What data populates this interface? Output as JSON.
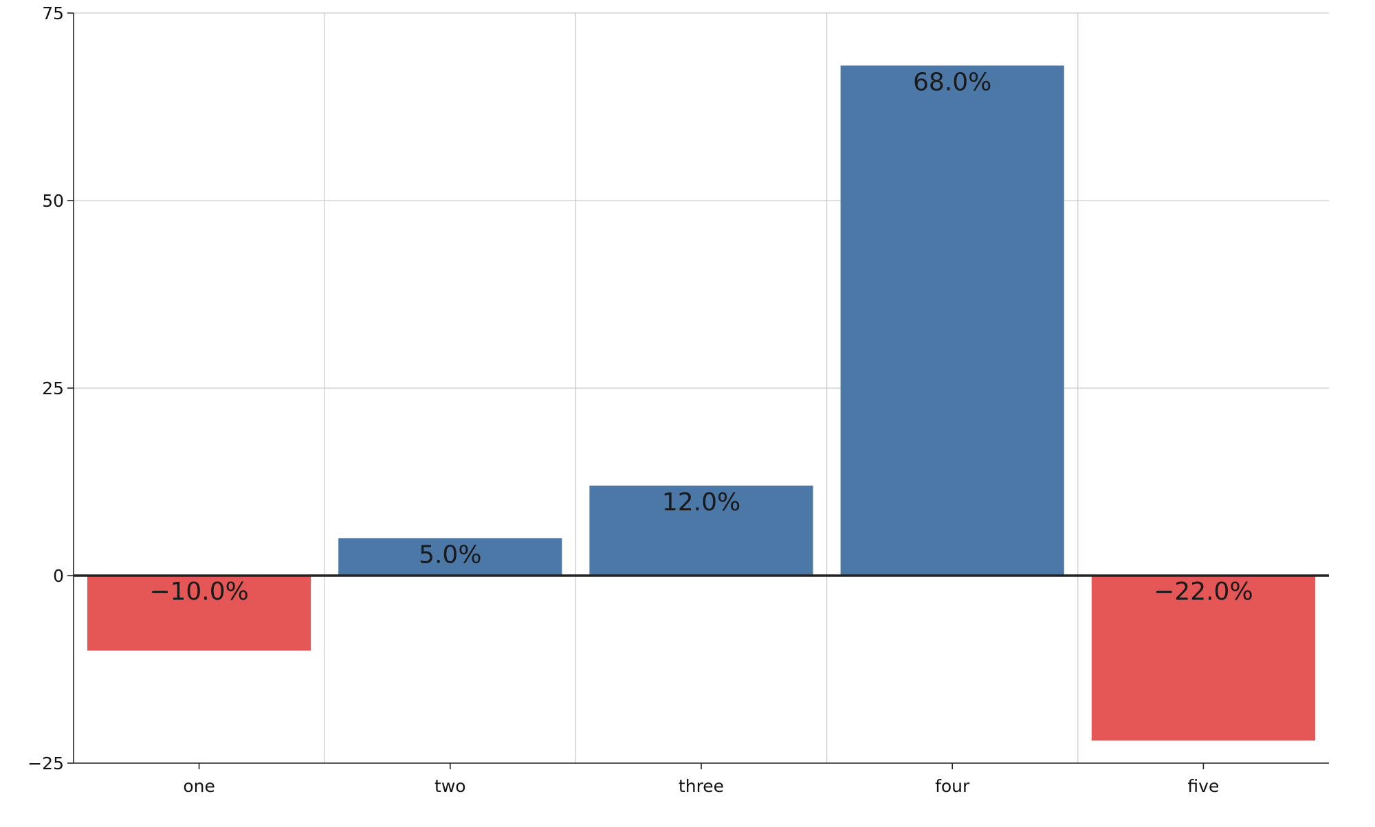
{
  "chart_data": {
    "type": "bar",
    "title": "",
    "xlabel": "",
    "ylabel": "",
    "categories": [
      "one",
      "two",
      "three",
      "four",
      "five"
    ],
    "values": [
      -10,
      5,
      12,
      68,
      -22
    ],
    "data_labels": [
      "−10.0%",
      "5.0%",
      "12.0%",
      "68.0%",
      "−22.0%"
    ],
    "ylim": [
      -25,
      75
    ],
    "yticks": [
      -25,
      0,
      25,
      50,
      75
    ],
    "ytick_labels": [
      "−25",
      "0",
      "25",
      "50",
      "75"
    ],
    "grid": true,
    "legend": "none",
    "colors": {
      "positive": "#4c78a8",
      "negative": "#e45756"
    }
  }
}
